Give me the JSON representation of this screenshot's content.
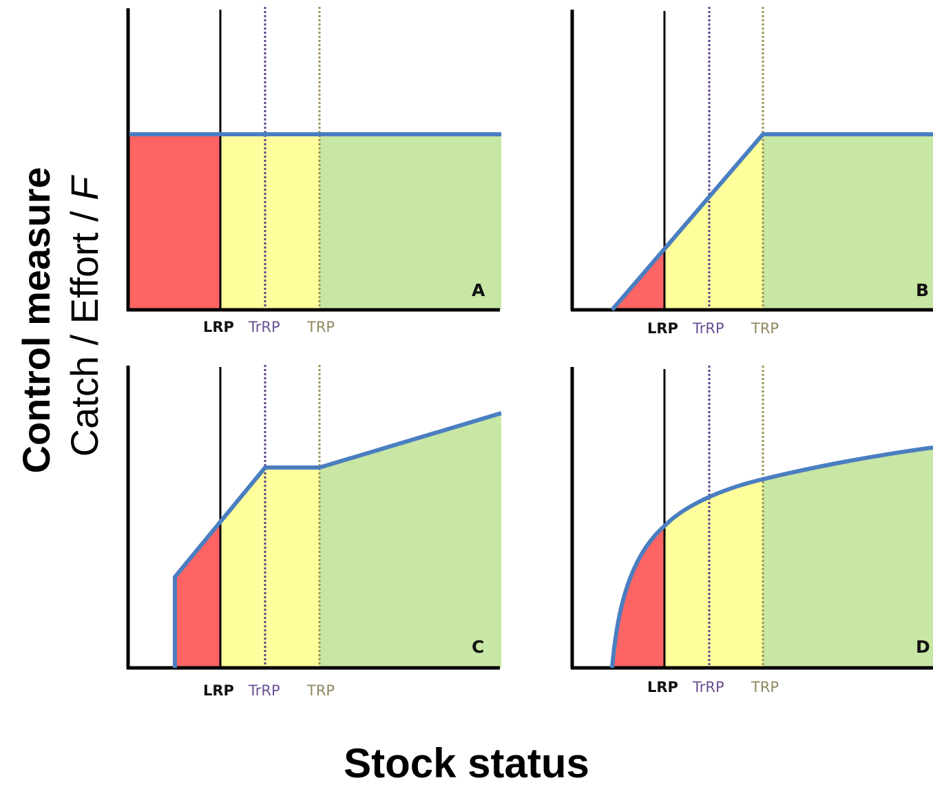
{
  "y_axis": {
    "title_bold": "Control measure",
    "title_regular": "Catch / Effort / ",
    "title_italic": "F"
  },
  "x_axis": {
    "title": "Stock status"
  },
  "reference_points": {
    "lrp": "LRP",
    "trrp": "TrRP",
    "trp": "TRP"
  },
  "colors": {
    "red_zone": "#fe6464",
    "yellow_zone": "#fefe9c",
    "green_zone": "#c8e6a4",
    "control_rule": "#4a7ec0",
    "trrp_line": "#5b3f88",
    "trp_line": "#9a9157",
    "axis": "#000000"
  },
  "panels": [
    {
      "id": "A",
      "label": "A",
      "rule": "constant"
    },
    {
      "id": "B",
      "label": "B",
      "rule": "linear ramp then constant"
    },
    {
      "id": "C",
      "label": "C",
      "rule": "ramp, plateau, then increasing"
    },
    {
      "id": "D",
      "label": "D",
      "rule": "concave increasing curve"
    }
  ]
}
